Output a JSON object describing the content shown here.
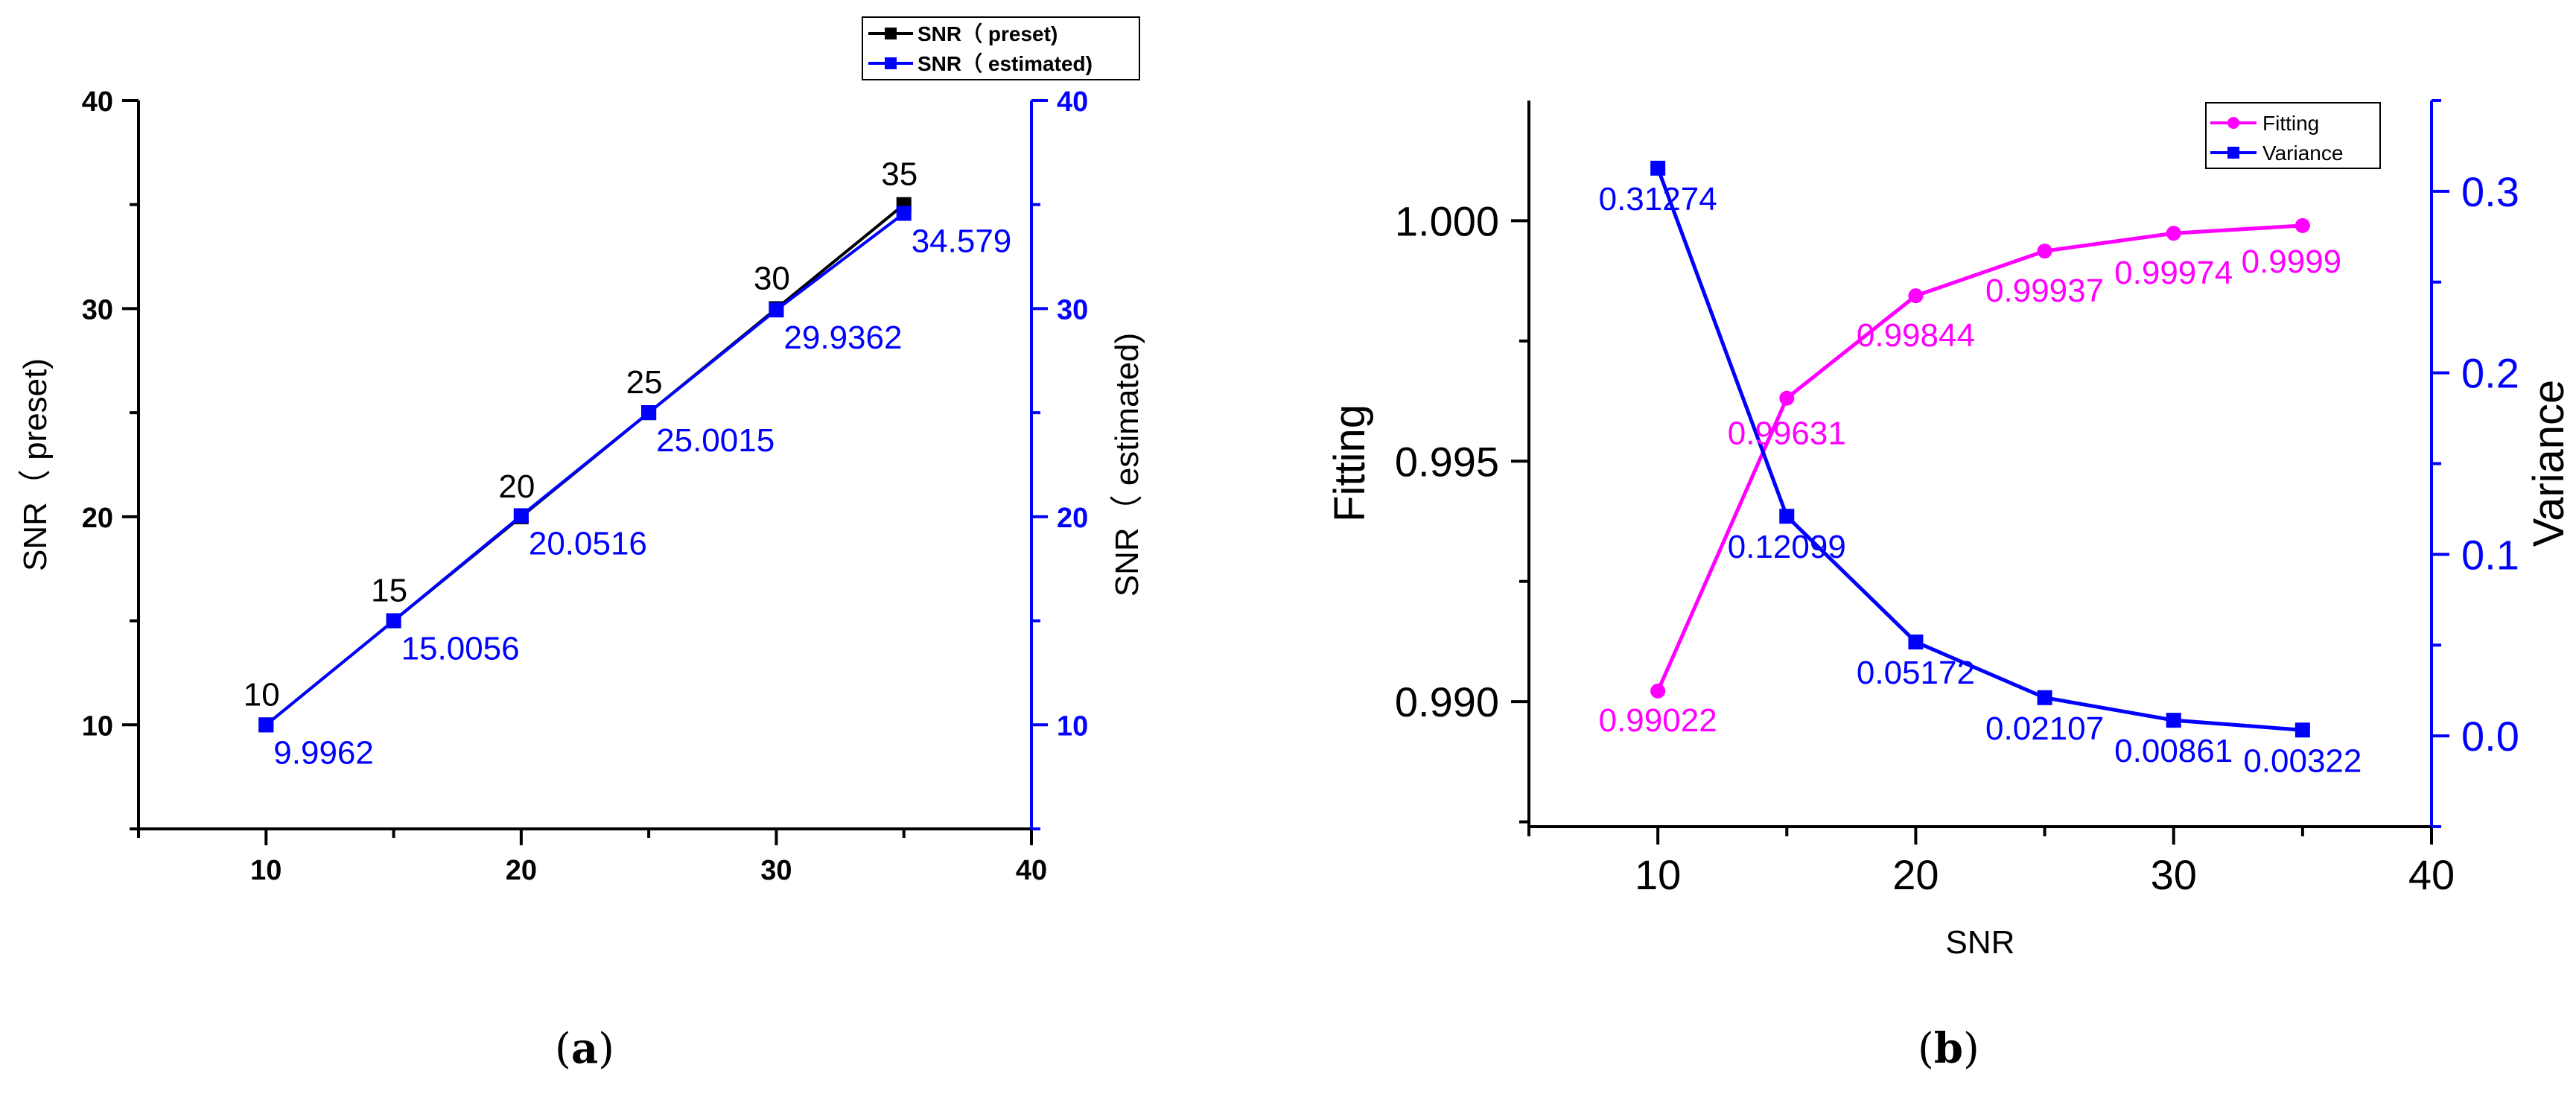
{
  "panel_a_label": "a",
  "panel_b_label": "b",
  "chart_data": [
    {
      "id": "a",
      "type": "line",
      "x": [
        10,
        15,
        20,
        25,
        30,
        35
      ],
      "xlim": [
        5,
        40
      ],
      "xticks": [
        "10",
        "20",
        "30",
        "40"
      ],
      "ylabel": "SNR（ preset)",
      "ylabel_right": "SNR（ estimated)",
      "ylim": [
        5,
        40
      ],
      "yticks": [
        "10",
        "20",
        "30",
        "40"
      ],
      "yticks_right": [
        "10",
        "20",
        "30",
        "40"
      ],
      "legend_position": "top-right",
      "grid": false,
      "colors": {
        "preset": "#000000",
        "estimated": "#0000ff"
      },
      "series": [
        {
          "name": "SNR（ preset)",
          "axis": "left",
          "color": "#000000",
          "marker": "square",
          "values": [
            10,
            15,
            20,
            25,
            30,
            35
          ],
          "labels": [
            "10",
            "15",
            "20",
            "25",
            "30",
            "35"
          ]
        },
        {
          "name": "SNR（ estimated)",
          "axis": "right",
          "color": "#0000ff",
          "marker": "square",
          "values": [
            9.9962,
            15.0056,
            20.0516,
            25.0015,
            29.9362,
            34.579
          ],
          "labels": [
            "9.9962",
            "15.0056",
            "20.0516",
            "25.0015",
            "29.9362",
            "34.579"
          ]
        }
      ]
    },
    {
      "id": "b",
      "type": "line",
      "x": [
        10,
        15,
        20,
        25,
        30,
        35
      ],
      "xlabel": "SNR",
      "xlim": [
        5,
        40
      ],
      "xticks": [
        "10",
        "20",
        "30",
        "40"
      ],
      "ylabel": "Fitting",
      "ylim": [
        0.9874,
        1.0025
      ],
      "yticks": [
        "0.990",
        "0.995",
        "1.000"
      ],
      "ylabel_right": "Variance",
      "ylim_right": [
        -0.05,
        0.35
      ],
      "yticks_right": [
        "0.0",
        "0.1",
        "0.2",
        "0.3"
      ],
      "legend_position": "top-right",
      "grid": false,
      "colors": {
        "fitting": "#ff00ff",
        "variance": "#0000ff"
      },
      "series": [
        {
          "name": "Fitting",
          "axis": "left",
          "color": "#ff00ff",
          "marker": "circle",
          "values": [
            0.99022,
            0.99631,
            0.99844,
            0.99937,
            0.99974,
            0.9999
          ],
          "labels": [
            "0.99022",
            "0.99631",
            "0.99844",
            "0.99937",
            "0.99974",
            "0.9999"
          ]
        },
        {
          "name": "Variance",
          "axis": "right",
          "color": "#0000ff",
          "marker": "square",
          "values": [
            0.31274,
            0.12099,
            0.05172,
            0.02107,
            0.00861,
            0.00322
          ],
          "labels": [
            "0.31274",
            "0.12099",
            "0.05172",
            "0.02107",
            "0.00861",
            "0.00322"
          ]
        }
      ]
    }
  ]
}
